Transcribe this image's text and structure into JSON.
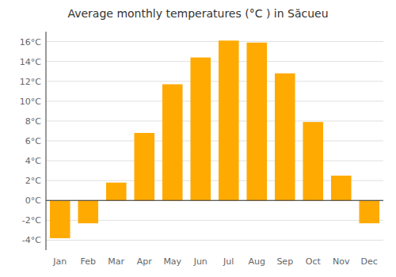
{
  "chart_data": {
    "type": "bar",
    "title": "Average monthly temperatures (°C ) in Săcueu",
    "categories": [
      "Jan",
      "Feb",
      "Mar",
      "Apr",
      "May",
      "Jun",
      "Jul",
      "Aug",
      "Sep",
      "Oct",
      "Nov",
      "Dec"
    ],
    "values": [
      -3.8,
      -2.3,
      1.8,
      6.8,
      11.7,
      14.4,
      16.1,
      15.9,
      12.8,
      7.9,
      2.5,
      -2.3
    ],
    "color": "#FFAA00",
    "ylim": [
      -5,
      17
    ],
    "yticks": [
      {
        "value": -4,
        "label": "-4°C"
      },
      {
        "value": -2,
        "label": "-2°C"
      },
      {
        "value": 0,
        "label": "0°C"
      },
      {
        "value": 2,
        "label": "2°C"
      },
      {
        "value": 4,
        "label": "4°C"
      },
      {
        "value": 6,
        "label": "6°C"
      },
      {
        "value": 8,
        "label": "8°C"
      },
      {
        "value": 10,
        "label": "10°C"
      },
      {
        "value": 12,
        "label": "12°C"
      },
      {
        "value": 14,
        "label": "14°C"
      },
      {
        "value": 16,
        "label": "16°C"
      }
    ],
    "grid": true
  }
}
